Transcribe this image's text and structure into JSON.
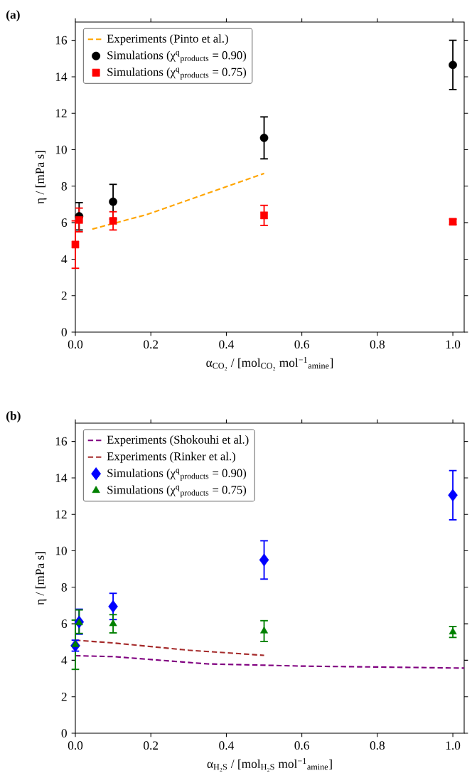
{
  "chart_data": [
    {
      "type": "scatter",
      "title": "(a)",
      "xlabel": "α$_{CO₂}$ / [mol$_{CO₂}$ mol$^{−1}$$_{amine}$]",
      "ylabel": "η / [mPa s]",
      "xlim": [
        0,
        1.03
      ],
      "ylim": [
        0,
        17
      ],
      "xticks": [
        {
          "value": 0,
          "label": "0.0"
        },
        {
          "value": 0.2,
          "label": "0.2"
        },
        {
          "value": 0.4,
          "label": "0.4"
        },
        {
          "value": 0.6,
          "label": "0.6"
        },
        {
          "value": 0.8,
          "label": "0.8"
        },
        {
          "value": 1,
          "label": "1.0"
        }
      ],
      "yticks": [
        0,
        2,
        4,
        6,
        8,
        10,
        12,
        14,
        16
      ],
      "legend": "top left",
      "series": [
        {
          "name": "Experiments (Pinto et al.)",
          "type": "line",
          "line_style": "dashed",
          "marker": "none",
          "color": "#ffa500",
          "x": [
            0.045,
            0.1,
            0.19,
            0.5
          ],
          "values": [
            5.65,
            5.95,
            6.45,
            8.7
          ]
        },
        {
          "name": "Simulations (χ$^{q}$$_{products}$ = 0.90)",
          "marker": "circle",
          "color": "#000000",
          "x": [
            0.01,
            0.1,
            0.5,
            1.0
          ],
          "values": [
            6.35,
            7.15,
            10.65,
            14.65
          ],
          "errors": [
            0.75,
            0.95,
            1.15,
            1.35
          ]
        },
        {
          "name": "Simulations (χ$^{q}$$_{products}$ = 0.75)",
          "marker": "square",
          "color": "#ff0000",
          "x": [
            0,
            0.01,
            0.1,
            0.5,
            1.0
          ],
          "values": [
            4.8,
            6.15,
            6.1,
            6.4,
            6.05
          ],
          "errors": [
            1.3,
            0.65,
            0.5,
            0.55,
            0.15
          ]
        }
      ]
    },
    {
      "type": "scatter",
      "title": "(b)",
      "xlabel": "α$_{H₂S}$ / [mol$_{H₂S}$ mol$^{−1}$$_{amine}$]",
      "ylabel": "η / [mPa s]",
      "xlim": [
        0,
        1.03
      ],
      "ylim": [
        0,
        17
      ],
      "xticks": [
        {
          "value": 0,
          "label": "0.0"
        },
        {
          "value": 0.2,
          "label": "0.2"
        },
        {
          "value": 0.4,
          "label": "0.4"
        },
        {
          "value": 0.6,
          "label": "0.6"
        },
        {
          "value": 0.8,
          "label": "0.8"
        },
        {
          "value": 1,
          "label": "1.0"
        }
      ],
      "yticks": [
        0,
        2,
        4,
        6,
        8,
        10,
        12,
        14,
        16
      ],
      "legend": "top left",
      "series": [
        {
          "name": "Experiments (Shokouhi et al.)",
          "type": "line",
          "line_style": "dashed",
          "marker": "none",
          "color": "#800080",
          "x": [
            0,
            0.1,
            0.35,
            0.6,
            1.03
          ],
          "values": [
            4.25,
            4.2,
            3.8,
            3.68,
            3.57
          ]
        },
        {
          "name": "Experiments (Rinker et al.)",
          "type": "line",
          "line_style": "dashed",
          "marker": "none",
          "color": "#a52a2a",
          "x": [
            0,
            0.1,
            0.3,
            0.5
          ],
          "values": [
            5.1,
            4.95,
            4.55,
            4.27
          ]
        },
        {
          "name": "Simulations (χ$^{q}$$_{products}$ = 0.90)",
          "marker": "diamond",
          "color": "#0000ff",
          "x": [
            0,
            0.01,
            0.1,
            0.5,
            1.0
          ],
          "values": [
            4.8,
            6.1,
            6.95,
            9.5,
            13.05
          ],
          "errors": [
            0.3,
            [
              5.43,
              6.8
            ],
            0.72,
            1.05,
            1.35
          ]
        },
        {
          "name": "Simulations (χ$^{q}$$_{products}$ = 0.75)",
          "marker": "triangle",
          "color": "#008000",
          "x": [
            0,
            0.01,
            0.1,
            0.5,
            1.0
          ],
          "values": [
            4.85,
            6.05,
            6.0,
            5.6,
            5.55
          ],
          "errors": [
            1.35,
            [
              5.47,
              6.76
            ],
            0.5,
            0.57,
            0.3
          ]
        }
      ]
    }
  ]
}
